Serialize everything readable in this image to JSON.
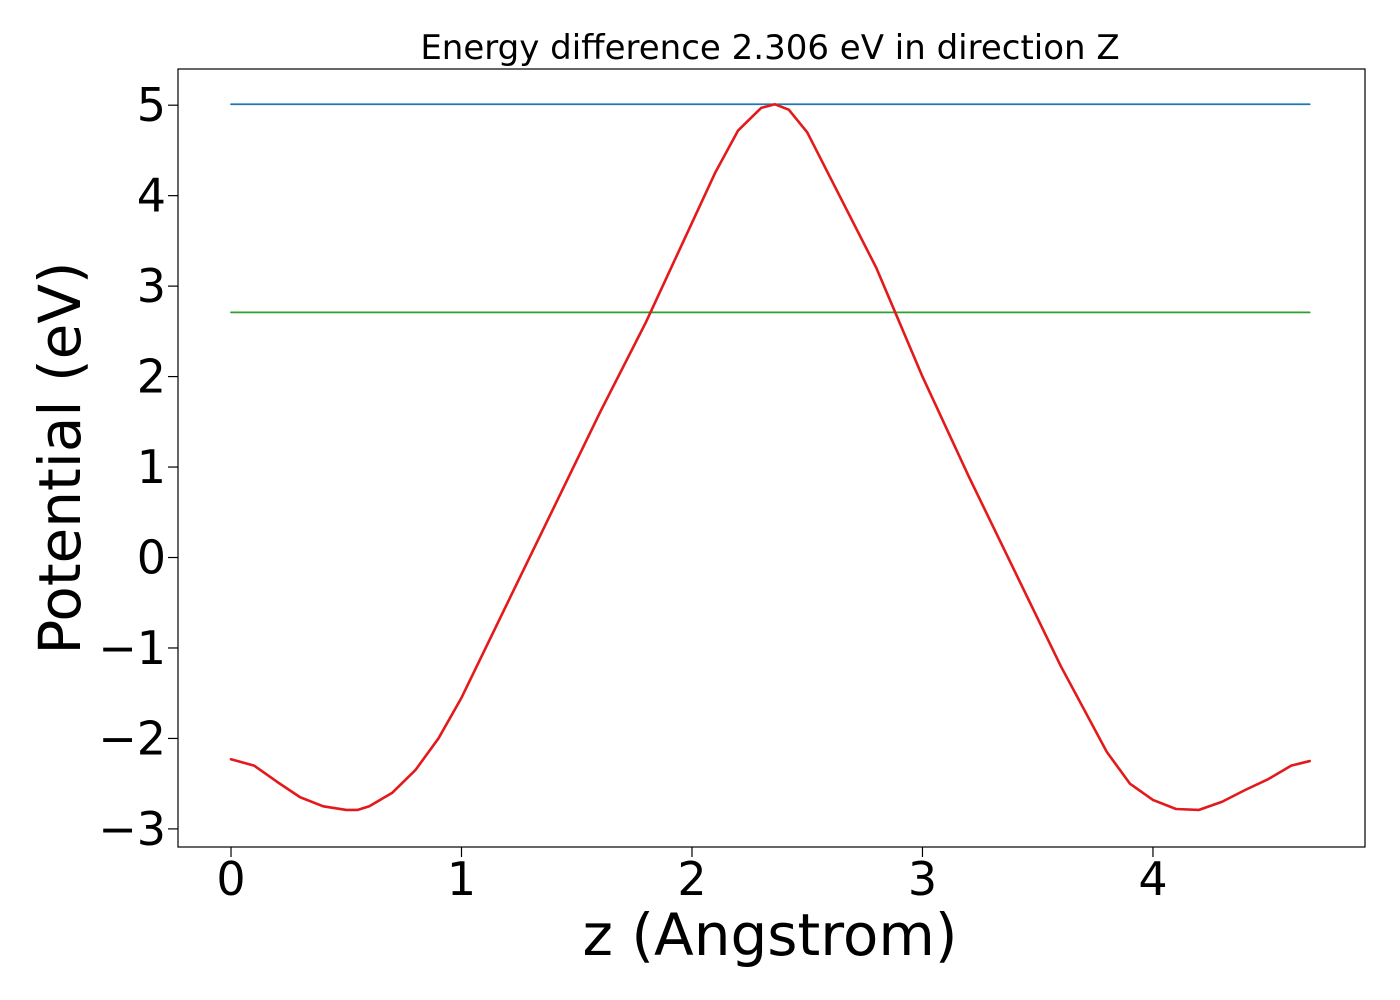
{
  "chart_data": {
    "type": "line",
    "title": "Energy difference 2.306 eV in direction Z",
    "xlabel": "z (Angstrom)",
    "ylabel": "Potential (eV)",
    "xlim": [
      -0.23,
      4.92
    ],
    "ylim": [
      -3.2,
      5.4
    ],
    "xticks": [
      0,
      1,
      2,
      3,
      4
    ],
    "yticks": [
      -3,
      -2,
      -1,
      0,
      1,
      2,
      3,
      4,
      5
    ],
    "xtick_labels": [
      "0",
      "1",
      "2",
      "3",
      "4"
    ],
    "ytick_labels": [
      "−3",
      "−2",
      "−1",
      "0",
      "1",
      "2",
      "3",
      "4",
      "5"
    ],
    "grid": false,
    "series": [
      {
        "color": "#1f77b4",
        "x": [
          0,
          4.68
        ],
        "y": [
          5.01,
          5.01
        ]
      },
      {
        "color": "#2ca02c",
        "x": [
          0,
          4.68
        ],
        "y": [
          2.71,
          2.71
        ]
      },
      {
        "color": "#e31a1c",
        "x": [
          0,
          0.1,
          0.2,
          0.3,
          0.4,
          0.5,
          0.55,
          0.6,
          0.7,
          0.8,
          0.9,
          1.0,
          1.2,
          1.4,
          1.6,
          1.8,
          2.0,
          2.1,
          2.2,
          2.3,
          2.36,
          2.42,
          2.5,
          2.6,
          2.8,
          3.0,
          3.2,
          3.4,
          3.6,
          3.8,
          3.9,
          4.0,
          4.1,
          4.2,
          4.3,
          4.4,
          4.5,
          4.6,
          4.68
        ],
        "y": [
          -2.23,
          -2.3,
          -2.48,
          -2.65,
          -2.75,
          -2.79,
          -2.79,
          -2.75,
          -2.6,
          -2.35,
          -2.0,
          -1.55,
          -0.5,
          0.55,
          1.6,
          2.6,
          3.7,
          4.25,
          4.72,
          4.97,
          5.01,
          4.95,
          4.7,
          4.2,
          3.2,
          2.0,
          0.9,
          -0.15,
          -1.2,
          -2.15,
          -2.5,
          -2.68,
          -2.78,
          -2.79,
          -2.7,
          -2.57,
          -2.45,
          -2.3,
          -2.25
        ]
      }
    ]
  }
}
